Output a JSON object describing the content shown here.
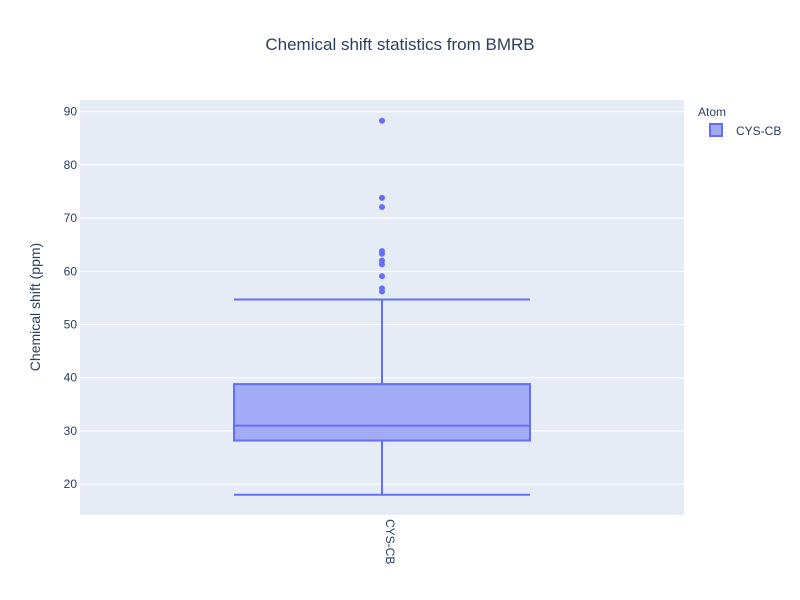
{
  "chart_data": {
    "type": "box",
    "title": "Chemical shift statistics from BMRB",
    "xlabel": "",
    "ylabel": "Chemical shift (ppm)",
    "categories": [
      "CYS-CB"
    ],
    "ylim": [
      14.2,
      92.2
    ],
    "yticks": [
      20,
      30,
      40,
      50,
      60,
      70,
      80,
      90
    ],
    "grid": true,
    "legend": {
      "title": "Atom",
      "position": "top-right",
      "entries": [
        "CYS-CB"
      ]
    },
    "series": [
      {
        "name": "CYS-CB",
        "color": "#636efa",
        "fill": "#a4abf6",
        "lower_fence": 18.0,
        "q1": 28.2,
        "median": 31.0,
        "q3": 38.8,
        "upper_fence": 54.7,
        "outliers": [
          56.2,
          56.8,
          59.1,
          61.3,
          62.0,
          63.3,
          63.8,
          72.1,
          73.8,
          88.3
        ]
      }
    ]
  }
}
